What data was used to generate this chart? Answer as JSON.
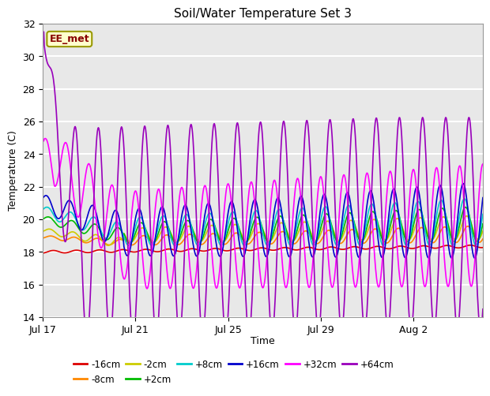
{
  "title": "Soil/Water Temperature Set 3",
  "ylabel": "Temperature (C)",
  "xlabel": "Time",
  "annotation": "EE_met",
  "ylim": [
    14,
    32
  ],
  "yticks": [
    14,
    16,
    18,
    20,
    22,
    24,
    26,
    28,
    30,
    32
  ],
  "xtick_labels": [
    "Jul 17",
    "Jul 21",
    "Jul 25",
    "Jul 29",
    "Aug 2"
  ],
  "xtick_positions": [
    0,
    4,
    8,
    12,
    16
  ],
  "xlim_end": 19,
  "plot_bg": "#e8e8e8",
  "series_colors": {
    "-16cm": "#dd0000",
    "-8cm": "#ff8800",
    "-2cm": "#cccc00",
    "+2cm": "#00bb00",
    "+8cm": "#00cccc",
    "+16cm": "#0000cc",
    "+32cm": "#ff00ff",
    "+64cm": "#9900bb"
  },
  "legend_row1": [
    "-16cm",
    "-8cm",
    "-2cm",
    "+2cm",
    "+8cm",
    "+16cm"
  ],
  "legend_row2": [
    "+32cm",
    "+64cm"
  ]
}
